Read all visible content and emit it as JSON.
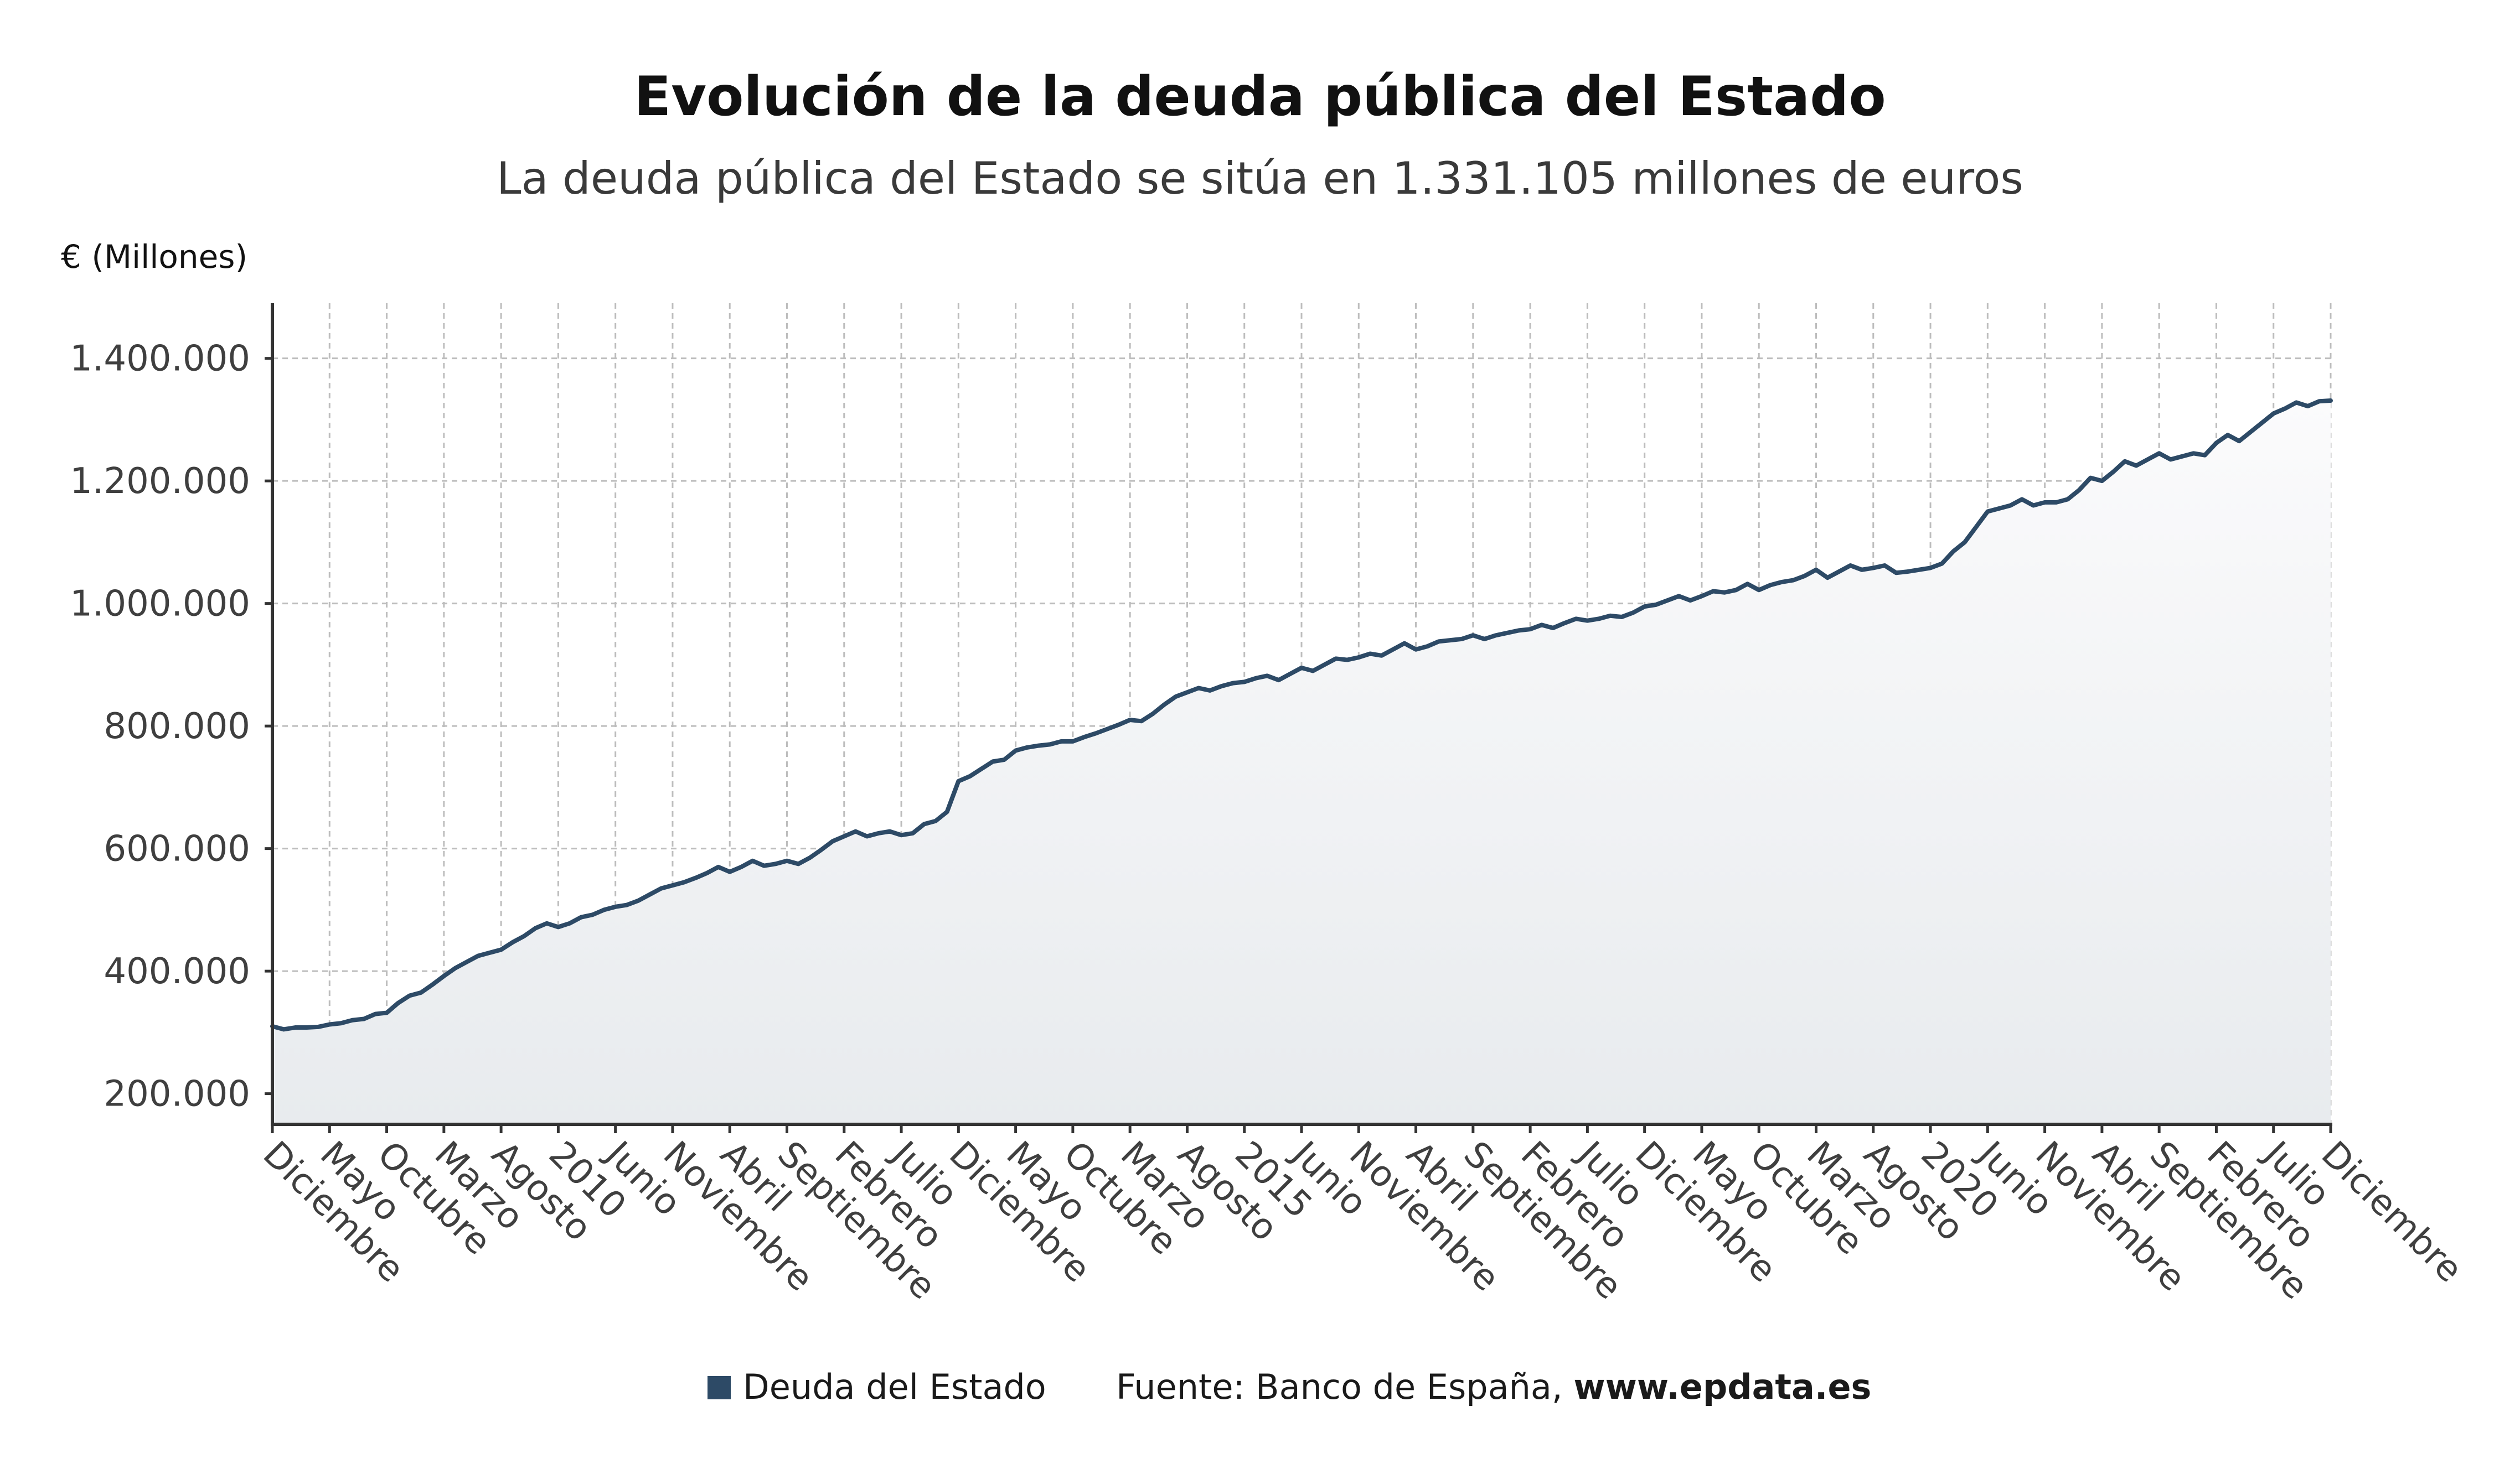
{
  "title": "Evolución de la deuda pública del Estado",
  "subtitle": "La deuda pública del Estado se sitúa en 1.331.105 millones de euros",
  "unit_label": "€ (Millones)",
  "legend": {
    "series_label": "Deuda del Estado",
    "source_prefix": "Fuente: Banco de España, ",
    "source_link": "www.epdata.es"
  },
  "colors": {
    "series": "#2d4a66",
    "area_top": "#fbfbfc",
    "area_bottom": "#e8ebee",
    "grid": "#bdbdbd",
    "axis": "#333333"
  },
  "chart_data": {
    "type": "area",
    "title": "Evolución de la deuda pública del Estado",
    "subtitle": "La deuda pública del Estado se sitúa en 1.331.105 millones de euros",
    "ylabel": "€ (Millones)",
    "xlabel": "",
    "ylim": [
      150000,
      1490000
    ],
    "yticks": [
      200000,
      400000,
      600000,
      800000,
      1000000,
      1200000,
      1400000
    ],
    "ytick_labels": [
      "200.000",
      "400.000",
      "600.000",
      "800.000",
      "1.000.000",
      "1.200.000",
      "1.400.000"
    ],
    "grid": true,
    "legend_position": "bottom",
    "xtick_labels": [
      "Diciembre",
      "Mayo",
      "Octubre",
      "Marzo",
      "Agosto",
      "2010",
      "Junio",
      "Noviembre",
      "Abril",
      "Septiembre",
      "Febrero",
      "Julio",
      "Diciembre",
      "Mayo",
      "Octubre",
      "Marzo",
      "Agosto",
      "2015",
      "Junio",
      "Noviembre",
      "Abril",
      "Septiembre",
      "Febrero",
      "Julio",
      "Diciembre",
      "Mayo",
      "Octubre",
      "Marzo",
      "Agosto",
      "2020",
      "Junio",
      "Noviembre",
      "Abril",
      "Septiembre",
      "Febrero",
      "Julio",
      "Diciembre"
    ],
    "series": [
      {
        "name": "Deuda del Estado",
        "start": "2007-12",
        "frequency": "monthly",
        "values": [
          310000,
          305000,
          308000,
          308000,
          309000,
          313000,
          315000,
          320000,
          322000,
          330000,
          332000,
          348000,
          360000,
          365000,
          378000,
          392000,
          405000,
          415000,
          425000,
          430000,
          435000,
          447000,
          457000,
          470000,
          478000,
          472000,
          478000,
          488000,
          492000,
          500000,
          505000,
          508000,
          515000,
          525000,
          535000,
          540000,
          545000,
          552000,
          560000,
          570000,
          562000,
          570000,
          580000,
          572000,
          575000,
          580000,
          575000,
          585000,
          598000,
          612000,
          620000,
          628000,
          620000,
          625000,
          628000,
          622000,
          625000,
          640000,
          645000,
          660000,
          710000,
          718000,
          730000,
          742000,
          745000,
          760000,
          765000,
          768000,
          770000,
          775000,
          775000,
          782000,
          788000,
          795000,
          802000,
          810000,
          808000,
          820000,
          835000,
          848000,
          855000,
          862000,
          858000,
          865000,
          870000,
          872000,
          878000,
          882000,
          875000,
          885000,
          895000,
          890000,
          900000,
          910000,
          908000,
          912000,
          918000,
          915000,
          925000,
          935000,
          925000,
          930000,
          938000,
          940000,
          942000,
          948000,
          942000,
          948000,
          952000,
          956000,
          958000,
          965000,
          960000,
          968000,
          975000,
          972000,
          975000,
          980000,
          978000,
          985000,
          995000,
          998000,
          1005000,
          1012000,
          1005000,
          1012000,
          1020000,
          1018000,
          1022000,
          1032000,
          1022000,
          1030000,
          1035000,
          1038000,
          1045000,
          1055000,
          1042000,
          1052000,
          1062000,
          1055000,
          1058000,
          1062000,
          1050000,
          1052000,
          1055000,
          1058000,
          1065000,
          1085000,
          1100000,
          1125000,
          1150000,
          1155000,
          1160000,
          1170000,
          1160000,
          1165000,
          1165000,
          1170000,
          1185000,
          1205000,
          1200000,
          1215000,
          1232000,
          1225000,
          1235000,
          1245000,
          1235000,
          1240000,
          1245000,
          1242000,
          1262000,
          1275000,
          1265000,
          1280000,
          1295000,
          1310000,
          1318000,
          1328000,
          1322000,
          1330000,
          1331105
        ]
      }
    ]
  }
}
